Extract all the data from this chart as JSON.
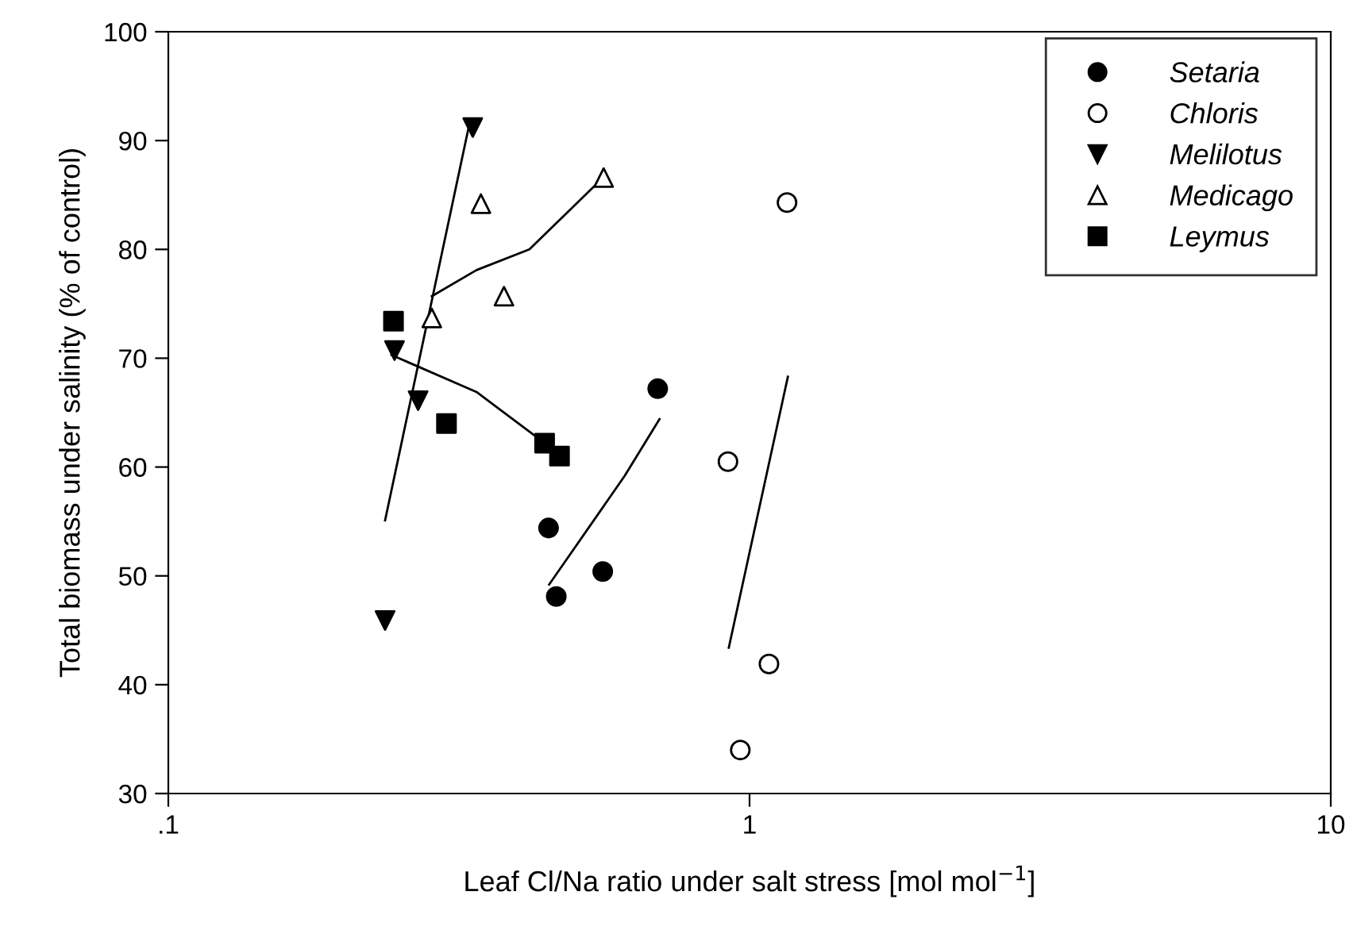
{
  "chart_data": {
    "type": "scatter",
    "xlabel": "Leaf Cl/Na ratio under salt stress [mol mol$^{−1}$]",
    "ylabel": "Total biomass under salinity (% of control)",
    "log": "x",
    "xlim": [
      0.1,
      10
    ],
    "xticks": [
      {
        "value": 0.1,
        "label": ".1"
      },
      1,
      10
    ],
    "ylim": [
      30,
      100
    ],
    "yticks": [
      30,
      40,
      50,
      60,
      70,
      80,
      90,
      100
    ],
    "grid": false,
    "legend": "top right",
    "series": [
      {
        "name": "Setaria",
        "marker": "circle",
        "color": "#000000",
        "x": [
          0.695,
          0.451,
          0.559,
          0.465
        ],
        "values": [
          67.2,
          54.4,
          50.4,
          48.1
        ]
      },
      {
        "name": "Chloris",
        "marker": "circle",
        "color": "#ffffff",
        "x": [
          1.16,
          0.918,
          1.08,
          0.964
        ],
        "values": [
          84.3,
          60.5,
          41.9,
          34.0
        ]
      },
      {
        "name": "Melilotus",
        "marker": "triangle_down",
        "color": "#000000",
        "x": [
          0.334,
          0.245,
          0.269,
          0.236
        ],
        "values": [
          91.2,
          70.7,
          66.1,
          45.9
        ]
      },
      {
        "name": "Medicago",
        "marker": "triangle",
        "color": "#ffffff",
        "x": [
          0.561,
          0.345,
          0.378,
          0.284
        ],
        "values": [
          86.6,
          84.2,
          75.7,
          73.7
        ]
      },
      {
        "name": "Leymus",
        "marker": "square",
        "color": "#000000",
        "x": [
          0.244,
          0.301,
          0.444,
          0.471
        ],
        "values": [
          73.4,
          64.0,
          62.2,
          61.0
        ]
      },
      {
        "type": "line",
        "marker": "none",
        "color": "#000000",
        "x": [
          0.452,
          0.61,
          0.7
        ],
        "values": [
          49.2,
          59.2,
          64.4
        ]
      },
      {
        "type": "line",
        "marker": "none",
        "color": "#000000",
        "x": [
          0.921,
          1.164
        ],
        "values": [
          43.4,
          68.3
        ]
      },
      {
        "type": "line",
        "marker": "none",
        "color": "#000000",
        "x": [
          0.236,
          0.328
        ],
        "values": [
          55.1,
          91.0
        ]
      },
      {
        "type": "line",
        "marker": "none",
        "color": "#000000",
        "x": [
          0.284,
          0.339,
          0.418,
          0.555
        ],
        "values": [
          75.7,
          78.1,
          80.0,
          86.4
        ]
      },
      {
        "type": "line",
        "marker": "none",
        "color": "#000000",
        "x": [
          0.242,
          0.339,
          0.444
        ],
        "values": [
          70.3,
          66.9,
          62.2
        ]
      }
    ]
  }
}
